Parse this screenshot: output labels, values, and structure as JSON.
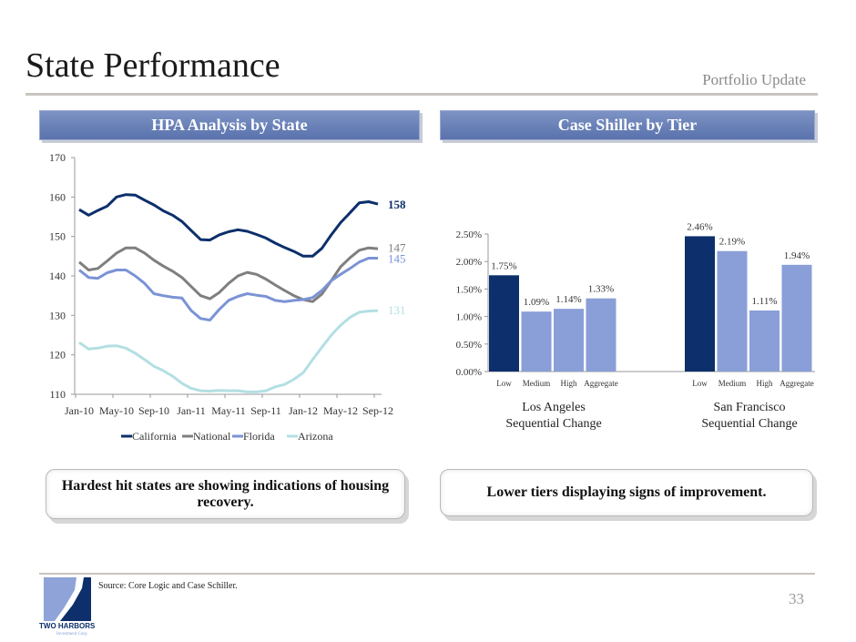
{
  "header": {
    "title": "State Performance",
    "subtitle": "Portfolio Update"
  },
  "left_panel": {
    "heading": "HPA Analysis by State",
    "callout": "Hardest hit states are showing indications of housing recovery."
  },
  "right_panel": {
    "heading": "Case Shiller by Tier",
    "callout": "Lower tiers displaying signs of improvement."
  },
  "footer": {
    "source": "Source: Core Logic and Case Schiller.",
    "page_number": "33",
    "logo_text": "TWO HARBORS",
    "logo_subtext": "Investment Corp."
  },
  "chart_data": [
    {
      "type": "line",
      "title": "HPA Analysis by State",
      "ylim": [
        110,
        170
      ],
      "yticks": [
        110,
        120,
        130,
        140,
        150,
        160,
        170
      ],
      "xtick_labels": [
        "Jan-10",
        "May-10",
        "Sep-10",
        "Jan-11",
        "May-11",
        "Sep-11",
        "Jan-12",
        "May-12",
        "Sep-12"
      ],
      "x_start": "Jan-10",
      "x_end": "Sep-12",
      "frequency": "monthly",
      "legend_position": "bottom",
      "series": [
        {
          "name": "California",
          "color": "#0d2f6b",
          "end_label": "158",
          "values": [
            156.8,
            155.4,
            156.6,
            157.7,
            160,
            160.6,
            160.5,
            159.2,
            158,
            156.5,
            155.4,
            153.8,
            151.5,
            149.2,
            149.1,
            150.4,
            151.2,
            151.7,
            151.3,
            150.5,
            149.6,
            148.3,
            147.2,
            146.2,
            145,
            145,
            147,
            150.4,
            153.5,
            156,
            158.5,
            158.8,
            158.2
          ]
        },
        {
          "name": "National",
          "color": "#7f7f7f",
          "end_label": "147",
          "values": [
            143.5,
            141.5,
            141.9,
            143.8,
            145.8,
            147.1,
            147.1,
            145.8,
            144,
            142.5,
            141.2,
            139.6,
            137.3,
            135,
            134.2,
            135.8,
            138.1,
            140,
            140.9,
            140.4,
            139.2,
            137.7,
            136.3,
            135,
            134,
            133.5,
            135.4,
            138.8,
            142.3,
            144.6,
            146.5,
            147.1,
            146.9
          ]
        },
        {
          "name": "Florida",
          "color": "#7b93d6",
          "end_label": "145",
          "values": [
            141.5,
            139.6,
            139.4,
            140.8,
            141.5,
            141.5,
            140,
            138.1,
            135.5,
            135,
            134.6,
            134.4,
            131.2,
            129.2,
            128.8,
            131.5,
            133.8,
            134.8,
            135.5,
            135.1,
            134.8,
            133.8,
            133.5,
            133.8,
            134,
            134.5,
            136.3,
            138.8,
            140.4,
            141.9,
            143.5,
            144.5,
            144.5
          ]
        },
        {
          "name": "Arizona",
          "color": "#b3dfe3",
          "end_label": "131",
          "values": [
            123.1,
            121.5,
            121.7,
            122.2,
            122.3,
            121.7,
            120.4,
            118.8,
            117.1,
            116,
            114.6,
            112.8,
            111.5,
            110.9,
            110.8,
            111,
            110.9,
            110.9,
            110.6,
            110.6,
            110.9,
            111.9,
            112.5,
            113.8,
            115.5,
            118.8,
            121.9,
            125,
            127.5,
            129.5,
            130.8,
            131.1,
            131.2
          ]
        }
      ]
    },
    {
      "type": "bar",
      "title": "Case Shiller by Tier",
      "ylim": [
        0,
        2.5
      ],
      "yticks": [
        "0.00%",
        "0.50%",
        "1.00%",
        "1.50%",
        "2.00%",
        "2.50%"
      ],
      "groups": [
        {
          "label1": "Los Angeles",
          "label2": "Sequential Change",
          "categories": [
            "Low",
            "Medium",
            "High",
            "Aggregate"
          ],
          "values": [
            1.75,
            1.09,
            1.14,
            1.33
          ],
          "labels": [
            "1.75%",
            "1.09%",
            "1.14%",
            "1.33%"
          ]
        },
        {
          "label1": "San Francisco",
          "label2": "Sequential Change",
          "categories": [
            "Low",
            "Medium",
            "High",
            "Aggregate"
          ],
          "values": [
            2.46,
            2.19,
            1.11,
            1.94
          ],
          "labels": [
            "2.46%",
            "2.19%",
            "1.11%",
            "1.94%"
          ]
        }
      ],
      "colors": {
        "low": "#0d2f6b",
        "other": "#8a9fd8"
      }
    }
  ]
}
